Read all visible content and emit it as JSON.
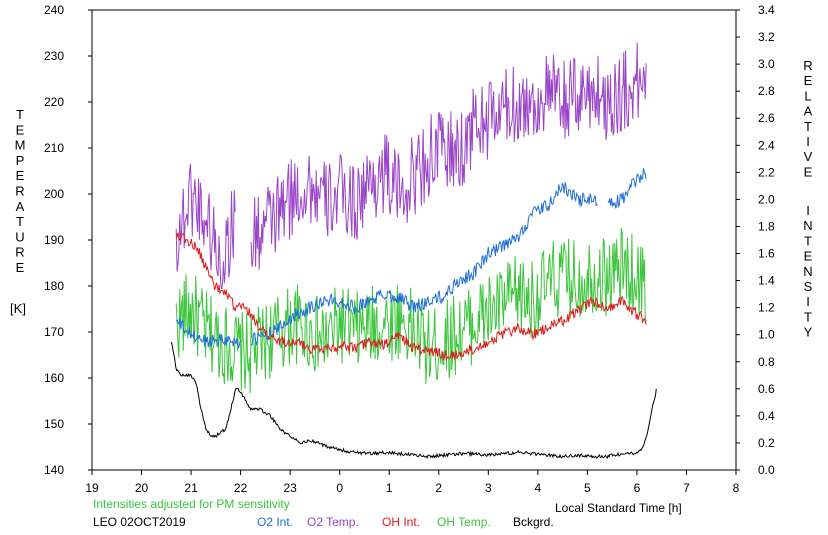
{
  "chart_data": {
    "type": "line",
    "left_axis": {
      "label_letters": [
        "T",
        "E",
        "M",
        "P",
        "E",
        "R",
        "A",
        "T",
        "U",
        "R",
        "E"
      ],
      "unit": "[K]",
      "ylim": [
        140,
        240
      ],
      "ticks": [
        "240",
        "230",
        "220",
        "210",
        "200",
        "190",
        "180",
        "170",
        "160",
        "150",
        "140"
      ]
    },
    "right_axis": {
      "label_word1": [
        "R",
        "E",
        "L",
        "A",
        "T",
        "I",
        "V",
        "E"
      ],
      "label_word2": [
        "I",
        "N",
        "T",
        "E",
        "N",
        "S",
        "I",
        "T",
        "Y"
      ],
      "ylim": [
        0.0,
        3.4
      ],
      "ticks": [
        "3.4",
        "3.2",
        "3.0",
        "2.8",
        "2.6",
        "2.4",
        "2.2",
        "2.0",
        "1.8",
        "1.6",
        "1.4",
        "1.2",
        "1.0",
        "0.8",
        "0.6",
        "0.4",
        "0.2",
        "0.0"
      ]
    },
    "x_axis": {
      "xlim": [
        19,
        32
      ],
      "tick_labels": [
        "19",
        "20",
        "21",
        "22",
        "23",
        "0",
        "1",
        "2",
        "3",
        "4",
        "5",
        "6",
        "7",
        "8"
      ],
      "xlabel": "Local Standard Time [h]"
    },
    "note": "Intensities adjusted for PM sensitivity",
    "station": "LEO 02OCT2019",
    "series": [
      {
        "name": "O2 Int.",
        "color": "#1f6fd6",
        "axis": "right",
        "x": [
          20.7,
          21.0,
          21.3,
          21.6,
          21.9,
          22.2,
          22.5,
          22.8,
          23.1,
          23.4,
          23.7,
          24.0,
          24.3,
          24.6,
          24.9,
          25.2,
          25.5,
          25.8,
          26.1,
          26.4,
          26.7,
          27.0,
          27.3,
          27.6,
          27.9,
          28.2,
          28.5,
          28.8,
          29.1,
          29.4,
          29.7,
          30.0,
          30.2
        ],
        "y": [
          1.1,
          1.0,
          0.95,
          0.97,
          0.95,
          0.95,
          1.0,
          1.05,
          1.15,
          1.2,
          1.25,
          1.25,
          1.2,
          1.25,
          1.3,
          1.28,
          1.2,
          1.25,
          1.28,
          1.4,
          1.45,
          1.6,
          1.65,
          1.72,
          1.9,
          1.95,
          2.1,
          2.0,
          2.0,
          1.95,
          2.0,
          2.15,
          2.2
        ],
        "gaps": [
          [
            22.0,
            22.2
          ],
          [
            29.2,
            29.4
          ]
        ]
      },
      {
        "name": "O2 Temp.",
        "color": "#9a44c9",
        "axis": "left",
        "x": [
          20.7,
          21.0,
          21.3,
          21.6,
          21.9,
          22.2,
          22.5,
          22.8,
          23.1,
          23.4,
          23.7,
          24.0,
          24.3,
          24.6,
          24.9,
          25.2,
          25.5,
          25.8,
          26.1,
          26.4,
          26.7,
          27.0,
          27.3,
          27.6,
          27.9,
          28.2,
          28.5,
          28.8,
          29.1,
          29.4,
          29.7,
          30.0,
          30.2
        ],
        "y": [
          190,
          200,
          195,
          185,
          195,
          190,
          193,
          196,
          200,
          202,
          198,
          200,
          198,
          202,
          205,
          200,
          204,
          208,
          210,
          208,
          215,
          216,
          218,
          220,
          219,
          222,
          220,
          221,
          223,
          220,
          222,
          224,
          225
        ],
        "gaps": [
          [
            21.9,
            22.2
          ]
        ]
      },
      {
        "name": "OH Int.",
        "color": "#dd1c1c",
        "axis": "right",
        "x": [
          20.7,
          20.9,
          21.1,
          21.3,
          21.5,
          21.7,
          21.9,
          22.1,
          22.3,
          22.5,
          22.8,
          23.1,
          23.4,
          23.7,
          24.0,
          24.3,
          24.6,
          24.9,
          25.2,
          25.5,
          25.8,
          26.1,
          26.4,
          26.7,
          27.0,
          27.3,
          27.6,
          27.9,
          28.2,
          28.5,
          28.8,
          29.1,
          29.4,
          29.7,
          30.0,
          30.2
        ],
        "y": [
          1.75,
          1.7,
          1.65,
          1.5,
          1.35,
          1.3,
          1.2,
          1.2,
          1.1,
          1.0,
          0.95,
          0.95,
          0.9,
          0.9,
          0.92,
          0.9,
          0.95,
          0.92,
          1.0,
          0.9,
          0.88,
          0.85,
          0.85,
          0.9,
          0.95,
          1.0,
          1.05,
          1.0,
          1.05,
          1.1,
          1.18,
          1.25,
          1.2,
          1.25,
          1.15,
          1.1
        ]
      },
      {
        "name": "OH Temp.",
        "color": "#3ac53a",
        "axis": "left",
        "x": [
          20.7,
          21.0,
          21.3,
          21.6,
          21.9,
          22.2,
          22.5,
          22.8,
          23.1,
          23.4,
          23.7,
          24.0,
          24.3,
          24.6,
          24.9,
          25.2,
          25.5,
          25.8,
          26.1,
          26.4,
          26.7,
          27.0,
          27.3,
          27.6,
          27.9,
          28.2,
          28.5,
          28.8,
          29.1,
          29.4,
          29.7,
          30.0,
          30.2
        ],
        "y": [
          172,
          175,
          170,
          168,
          166,
          165,
          168,
          170,
          172,
          170,
          168,
          172,
          170,
          171,
          172,
          173,
          170,
          166,
          168,
          170,
          172,
          174,
          176,
          178,
          177,
          180,
          182,
          181,
          183,
          182,
          184,
          182,
          180
        ]
      },
      {
        "name": "Bckgrd.",
        "color": "#000000",
        "axis": "right",
        "x": [
          20.6,
          20.7,
          20.8,
          21.0,
          21.1,
          21.2,
          21.3,
          21.4,
          21.5,
          21.6,
          21.7,
          21.8,
          21.9,
          22.0,
          22.2,
          22.4,
          22.6,
          22.8,
          23.0,
          23.2,
          23.4,
          23.7,
          24.0,
          24.3,
          24.6,
          24.9,
          25.2,
          25.5,
          25.8,
          26.1,
          26.4,
          26.7,
          27.0,
          27.3,
          27.6,
          27.9,
          28.2,
          28.5,
          28.8,
          29.1,
          29.4,
          29.7,
          30.0,
          30.1,
          30.2,
          30.3,
          30.4
        ],
        "y": [
          0.95,
          0.75,
          0.7,
          0.7,
          0.65,
          0.45,
          0.3,
          0.25,
          0.25,
          0.28,
          0.3,
          0.45,
          0.6,
          0.58,
          0.45,
          0.45,
          0.4,
          0.3,
          0.25,
          0.2,
          0.22,
          0.18,
          0.15,
          0.13,
          0.12,
          0.13,
          0.12,
          0.11,
          0.1,
          0.11,
          0.12,
          0.12,
          0.11,
          0.12,
          0.13,
          0.12,
          0.11,
          0.1,
          0.11,
          0.1,
          0.1,
          0.12,
          0.12,
          0.15,
          0.25,
          0.45,
          0.6
        ]
      }
    ]
  }
}
